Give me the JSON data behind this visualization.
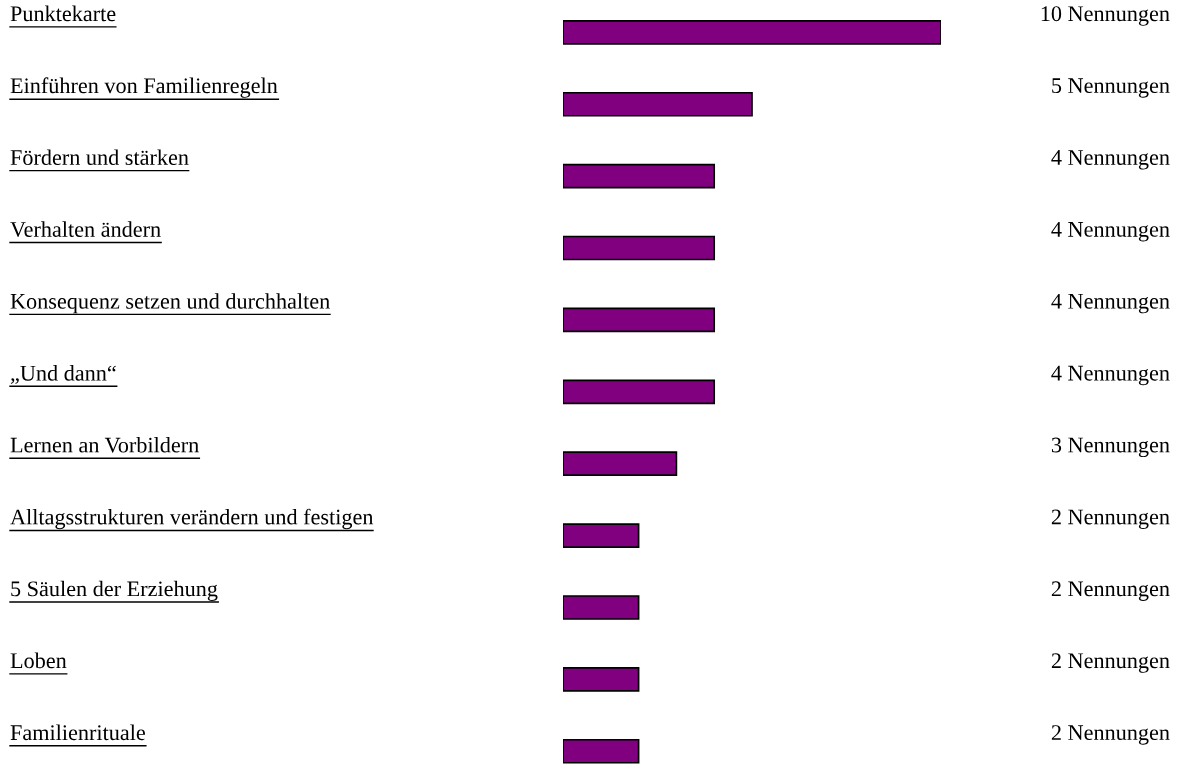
{
  "chart_data": {
    "type": "bar",
    "orientation": "horizontal",
    "categories": [
      "Punktekarte",
      "Einführen von Familienregeln",
      "Fördern und stärken",
      "Verhalten ändern",
      "Konsequenz setzen und durchhalten",
      "„Und dann“",
      "Lernen an Vorbildern",
      "Alltagsstrukturen verändern und festigen",
      "5 Säulen der Erziehung",
      "Loben",
      "Familienrituale"
    ],
    "values": [
      10,
      5,
      4,
      4,
      4,
      4,
      3,
      2,
      2,
      2,
      2
    ],
    "value_labels": [
      "10 Nennungen",
      "5 Nennungen",
      "4 Nennungen",
      "4 Nennungen",
      "4 Nennungen",
      "4 Nennungen",
      "3 Nennungen",
      "2 Nennungen",
      "2 Nennungen",
      "2 Nennungen",
      "2 Nennungen"
    ],
    "color": "#800080"
  }
}
